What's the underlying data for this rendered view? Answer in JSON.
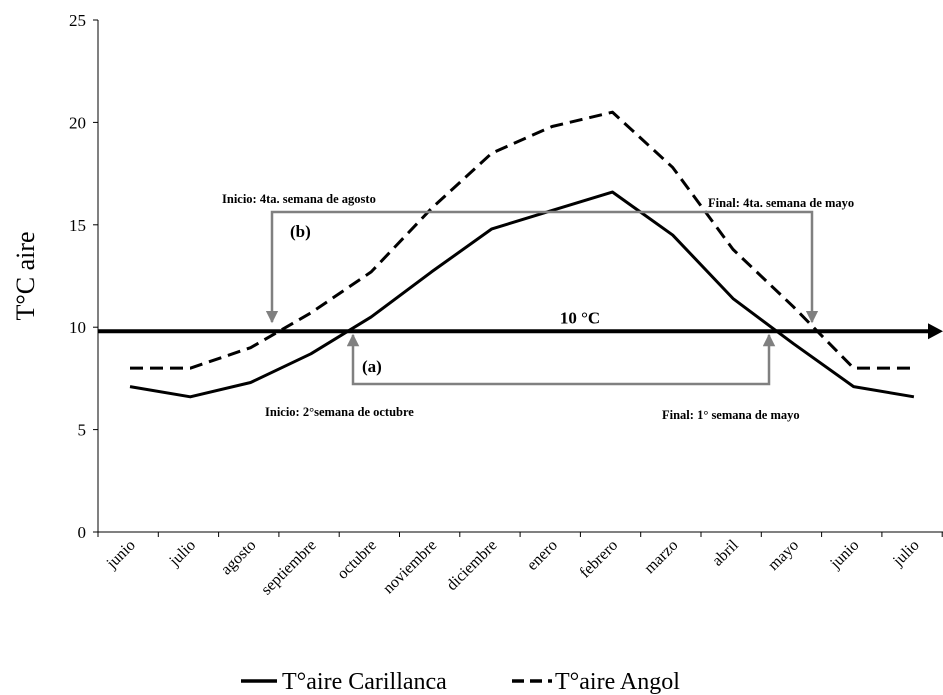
{
  "chart_data": {
    "type": "line",
    "title": "",
    "ylabel": "T°C aire",
    "xlabel": "",
    "ylim": [
      0,
      25
    ],
    "yticks": [
      0,
      5,
      10,
      15,
      20,
      25
    ],
    "categories": [
      "junio",
      "julio",
      "agosto",
      "septiembre",
      "octubre",
      "noviembre",
      "diciembre",
      "enero",
      "febrero",
      "marzo",
      "abril",
      "mayo",
      "junio",
      "julio"
    ],
    "series": [
      {
        "name": "T°aire Carillanca",
        "style": "solid",
        "color": "#000000",
        "values": [
          7.1,
          6.6,
          7.3,
          8.7,
          10.5,
          12.7,
          14.8,
          15.7,
          16.6,
          14.5,
          11.4,
          9.2,
          7.1,
          6.6
        ]
      },
      {
        "name": "T°aire Angol",
        "style": "dashed",
        "color": "#000000",
        "values": [
          8.0,
          8.0,
          9.0,
          10.7,
          12.7,
          15.8,
          18.5,
          19.8,
          20.5,
          17.8,
          13.8,
          11.0,
          8.0,
          8.0
        ]
      }
    ],
    "threshold": {
      "value": 9.8,
      "label": "10 °C"
    },
    "annotations": {
      "b_label": "(b)",
      "b_start": "Inicio: 4ta. semana de agosto",
      "b_end": "Final:  4ta. semana de mayo",
      "a_label": "(a)",
      "a_start": "Inicio: 2°semana de octubre",
      "a_end": "Final:  1° semana de mayo"
    },
    "grid": false,
    "legend_position": "bottom",
    "accent_color": "#808080"
  }
}
